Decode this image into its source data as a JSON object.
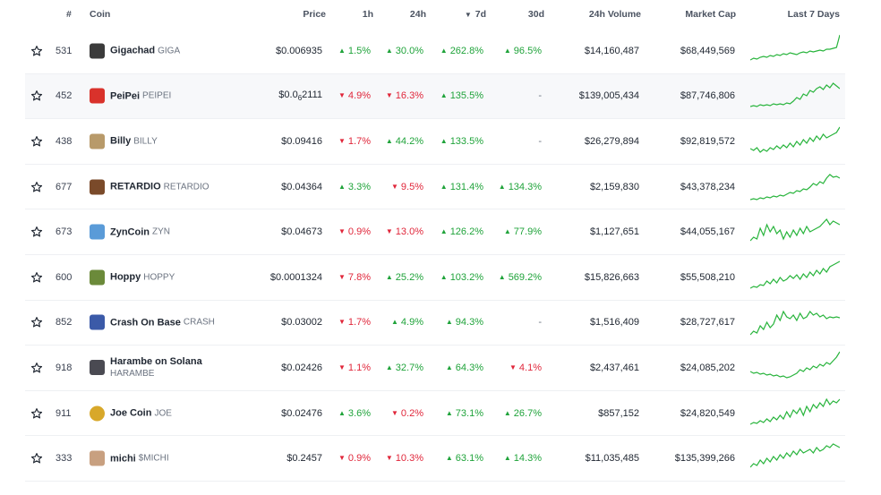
{
  "header": {
    "rank": "#",
    "coin": "Coin",
    "price": "Price",
    "h1": "1h",
    "h24": "24h",
    "d7": "7d",
    "d7_sort": "▼",
    "d30": "30d",
    "vol": "24h Volume",
    "mcap": "Market Cap",
    "spark": "Last 7 Days"
  },
  "colors": {
    "up": "#1fa33a",
    "down": "#e0263a",
    "spark": "#28b43c"
  },
  "rows": [
    {
      "rank": "531",
      "name": "Gigachad",
      "symbol": "GIGA",
      "avatar": "#3b3b3b",
      "price": "$0.006935",
      "h1": "1.5%",
      "h1_dir": "up",
      "h24": "30.0%",
      "h24_dir": "up",
      "d7": "262.8%",
      "d7_dir": "up",
      "d30": "96.5%",
      "d30_dir": "up",
      "vol": "$14,160,487",
      "mcap": "$68,449,569",
      "spark": [
        30,
        28,
        29,
        27,
        26,
        27,
        25,
        26,
        24,
        25,
        23,
        24,
        22,
        23,
        24,
        22,
        21,
        22,
        20,
        21,
        20,
        19,
        20,
        18,
        18,
        17,
        16,
        2
      ]
    },
    {
      "rank": "452",
      "name": "PeiPei",
      "symbol": "PEIPEI",
      "avatar": "#d9322b",
      "price_pre": "$0.0",
      "price_sub": "6",
      "price_post": "2111",
      "h1": "4.9%",
      "h1_dir": "down",
      "h24": "16.3%",
      "h24_dir": "down",
      "d7": "135.5%",
      "d7_dir": "up",
      "d30": "-",
      "d30_dir": "na",
      "vol": "$139,005,434",
      "mcap": "$87,746,806",
      "spark": [
        32,
        31,
        32,
        30,
        31,
        30,
        31,
        29,
        30,
        29,
        30,
        28,
        29,
        26,
        22,
        24,
        18,
        20,
        14,
        16,
        12,
        10,
        13,
        8,
        11,
        6,
        9,
        12
      ]
    },
    {
      "rank": "438",
      "name": "Billy",
      "symbol": "BILLY",
      "avatar": "#b89a6a",
      "price": "$0.09416",
      "h1": "1.7%",
      "h1_dir": "down",
      "h24": "44.2%",
      "h24_dir": "up",
      "d7": "133.5%",
      "d7_dir": "up",
      "d30": "-",
      "d30_dir": "na",
      "vol": "$26,279,894",
      "mcap": "$92,819,572",
      "spark": [
        28,
        30,
        27,
        32,
        29,
        31,
        27,
        29,
        25,
        28,
        24,
        27,
        22,
        26,
        20,
        24,
        18,
        22,
        16,
        20,
        14,
        18,
        12,
        16,
        14,
        12,
        10,
        4
      ]
    },
    {
      "rank": "677",
      "name": "RETARDIO",
      "symbol": "RETARDIO",
      "avatar": "#7a4a2a",
      "price": "$0.04364",
      "h1": "3.3%",
      "h1_dir": "up",
      "h24": "9.5%",
      "h24_dir": "down",
      "d7": "131.4%",
      "d7_dir": "up",
      "d30": "134.3%",
      "d30_dir": "up",
      "vol": "$2,159,830",
      "mcap": "$43,378,234",
      "spark": [
        34,
        33,
        34,
        32,
        33,
        31,
        32,
        30,
        31,
        29,
        30,
        28,
        26,
        27,
        24,
        25,
        22,
        23,
        20,
        16,
        18,
        14,
        16,
        10,
        6,
        9,
        8,
        10
      ]
    },
    {
      "rank": "673",
      "name": "ZynCoin",
      "symbol": "ZYN",
      "avatar": "#5a9bd8",
      "price": "$0.04673",
      "h1": "0.9%",
      "h1_dir": "down",
      "h24": "13.0%",
      "h24_dir": "down",
      "d7": "126.2%",
      "d7_dir": "up",
      "d30": "77.9%",
      "d30_dir": "up",
      "vol": "$1,127,651",
      "mcap": "$44,055,167",
      "spark": [
        30,
        26,
        28,
        16,
        24,
        12,
        20,
        14,
        22,
        18,
        28,
        20,
        26,
        18,
        24,
        16,
        22,
        14,
        20,
        18,
        16,
        14,
        10,
        6,
        12,
        8,
        10,
        12
      ]
    },
    {
      "rank": "600",
      "name": "Hoppy",
      "symbol": "HOPPY",
      "avatar": "#6b8a3a",
      "price": "$0.0001324",
      "h1": "7.8%",
      "h1_dir": "down",
      "h24": "25.2%",
      "h24_dir": "up",
      "d7": "103.2%",
      "d7_dir": "up",
      "d30": "569.2%",
      "d30_dir": "up",
      "vol": "$15,826,663",
      "mcap": "$55,508,210",
      "spark": [
        32,
        30,
        31,
        28,
        29,
        24,
        27,
        22,
        26,
        20,
        24,
        22,
        18,
        21,
        17,
        22,
        16,
        20,
        14,
        18,
        12,
        16,
        10,
        14,
        8,
        6,
        4,
        2
      ]
    },
    {
      "rank": "852",
      "name": "Crash On Base",
      "symbol": "CRASH",
      "avatar": "#3b5aa8",
      "price": "$0.03002",
      "h1": "1.7%",
      "h1_dir": "down",
      "h24": "4.9%",
      "h24_dir": "up",
      "d7": "94.3%",
      "d7_dir": "up",
      "d30": "-",
      "d30_dir": "na",
      "vol": "$1,516,409",
      "mcap": "$28,727,617",
      "spark": [
        34,
        30,
        32,
        24,
        28,
        20,
        26,
        22,
        12,
        18,
        8,
        14,
        16,
        12,
        18,
        10,
        16,
        14,
        8,
        12,
        10,
        14,
        12,
        16,
        14,
        15,
        14,
        15
      ]
    },
    {
      "rank": "918",
      "name": "Harambe on Solana",
      "symbol": "HARAMBE",
      "avatar": "#4a4a52",
      "price": "$0.02426",
      "twoline": true,
      "h1": "1.1%",
      "h1_dir": "down",
      "h24": "32.7%",
      "h24_dir": "up",
      "d7": "64.3%",
      "d7_dir": "up",
      "d30": "4.1%",
      "d30_dir": "down",
      "vol": "$2,437,461",
      "mcap": "$24,085,202",
      "spark": [
        24,
        26,
        25,
        27,
        26,
        28,
        27,
        29,
        28,
        30,
        29,
        31,
        30,
        28,
        26,
        22,
        24,
        20,
        22,
        18,
        20,
        16,
        18,
        14,
        16,
        12,
        8,
        2
      ]
    },
    {
      "rank": "911",
      "name": "Joe Coin",
      "symbol": "JOE",
      "avatar": "#d8a82a",
      "price": "$0.02476",
      "round": true,
      "h1": "3.6%",
      "h1_dir": "up",
      "h24": "0.2%",
      "h24_dir": "down",
      "d7": "73.1%",
      "d7_dir": "up",
      "d30": "26.7%",
      "d30_dir": "up",
      "vol": "$857,152",
      "mcap": "$24,820,549",
      "spark": [
        32,
        30,
        31,
        28,
        30,
        26,
        29,
        24,
        27,
        22,
        26,
        18,
        24,
        16,
        20,
        14,
        22,
        12,
        18,
        10,
        14,
        8,
        12,
        4,
        10,
        6,
        8,
        4
      ]
    },
    {
      "rank": "333",
      "name": "michi",
      "symbol": "$MICHI",
      "avatar": "#c8a080",
      "price": "$0.2457",
      "h1": "0.9%",
      "h1_dir": "down",
      "h24": "10.3%",
      "h24_dir": "down",
      "d7": "63.1%",
      "d7_dir": "up",
      "d30": "14.3%",
      "d30_dir": "up",
      "vol": "$11,035,485",
      "mcap": "$135,399,266",
      "spark": [
        30,
        26,
        28,
        22,
        26,
        20,
        24,
        18,
        22,
        16,
        20,
        14,
        18,
        12,
        16,
        10,
        14,
        12,
        10,
        14,
        8,
        12,
        10,
        6,
        8,
        4,
        6,
        8
      ]
    }
  ]
}
